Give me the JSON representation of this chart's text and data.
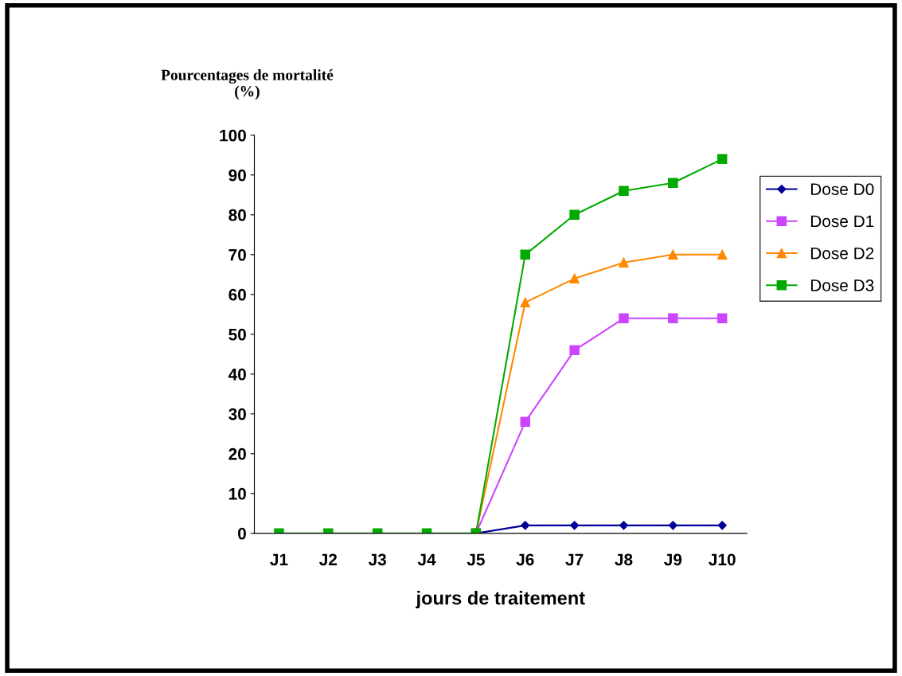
{
  "chart_data": {
    "type": "line",
    "ylabel": "Pourcentages de mortalité\n(%)",
    "xlabel": "jours de traitement",
    "categories": [
      "J1",
      "J2",
      "J3",
      "J4",
      "J5",
      "J6",
      "J7",
      "J8",
      "J9",
      "J10"
    ],
    "series": [
      {
        "name": "Dose D0",
        "color": "#000099",
        "marker": "diamond",
        "values": [
          null,
          null,
          null,
          null,
          0,
          2,
          2,
          2,
          2,
          2
        ]
      },
      {
        "name": "Dose D1",
        "color": "#cc44ff",
        "marker": "square",
        "values": [
          null,
          null,
          null,
          null,
          0,
          28,
          46,
          54,
          54,
          54
        ]
      },
      {
        "name": "Dose D2",
        "color": "#ff8800",
        "marker": "triangle",
        "values": [
          null,
          null,
          null,
          null,
          0,
          58,
          64,
          68,
          70,
          70
        ]
      },
      {
        "name": "Dose D3",
        "color": "#00aa00",
        "marker": "square",
        "values": [
          0,
          0,
          0,
          0,
          0,
          70,
          80,
          86,
          88,
          94
        ]
      }
    ],
    "ylim": [
      0,
      100
    ],
    "yticks": [
      0,
      10,
      20,
      30,
      40,
      50,
      60,
      70,
      80,
      90,
      100
    ],
    "grid": false,
    "legend": "right",
    "line_style": "solid"
  }
}
